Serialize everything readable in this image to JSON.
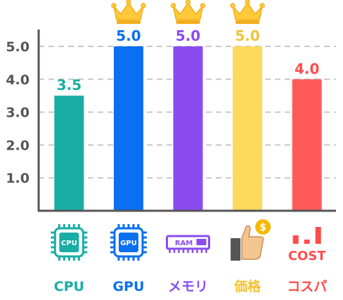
{
  "chart_data": {
    "type": "bar",
    "categories": [
      "CPU",
      "GPU",
      "メモリ",
      "価格",
      "コスパ"
    ],
    "values": [
      3.5,
      5.0,
      5.0,
      5.0,
      4.0
    ],
    "value_labels": [
      "3.5",
      "5.0",
      "5.0",
      "5.0",
      "4.0"
    ],
    "colors": [
      "#1aada5",
      "#0a6ff0",
      "#8a4cf0",
      "#ffd95c",
      "#ff5a5a"
    ],
    "label_colors": [
      "#1aada5",
      "#0a6ff0",
      "#8a4cf0",
      "#f2c232",
      "#ff4b4b"
    ],
    "crowned": [
      false,
      true,
      true,
      true,
      false
    ],
    "y_ticks": [
      "1.0",
      "2.0",
      "3.0",
      "4.0",
      "5.0"
    ],
    "ylim": [
      0,
      5.4
    ],
    "grid": true,
    "title": "",
    "xlabel": "",
    "ylabel": ""
  },
  "icons": [
    {
      "name": "cpu-chip-icon",
      "text": "CPU"
    },
    {
      "name": "gpu-chip-icon",
      "text": "GPU"
    },
    {
      "name": "ram-module-icon",
      "text": "RAM"
    },
    {
      "name": "thumbs-up-coin-icon",
      "text": "$"
    },
    {
      "name": "cost-bars-icon",
      "text": "COST"
    }
  ],
  "crown_icon": "crown-icon",
  "axis_color": "#555555",
  "grid_color": "#c8c8c8",
  "tick_color": "#555555"
}
